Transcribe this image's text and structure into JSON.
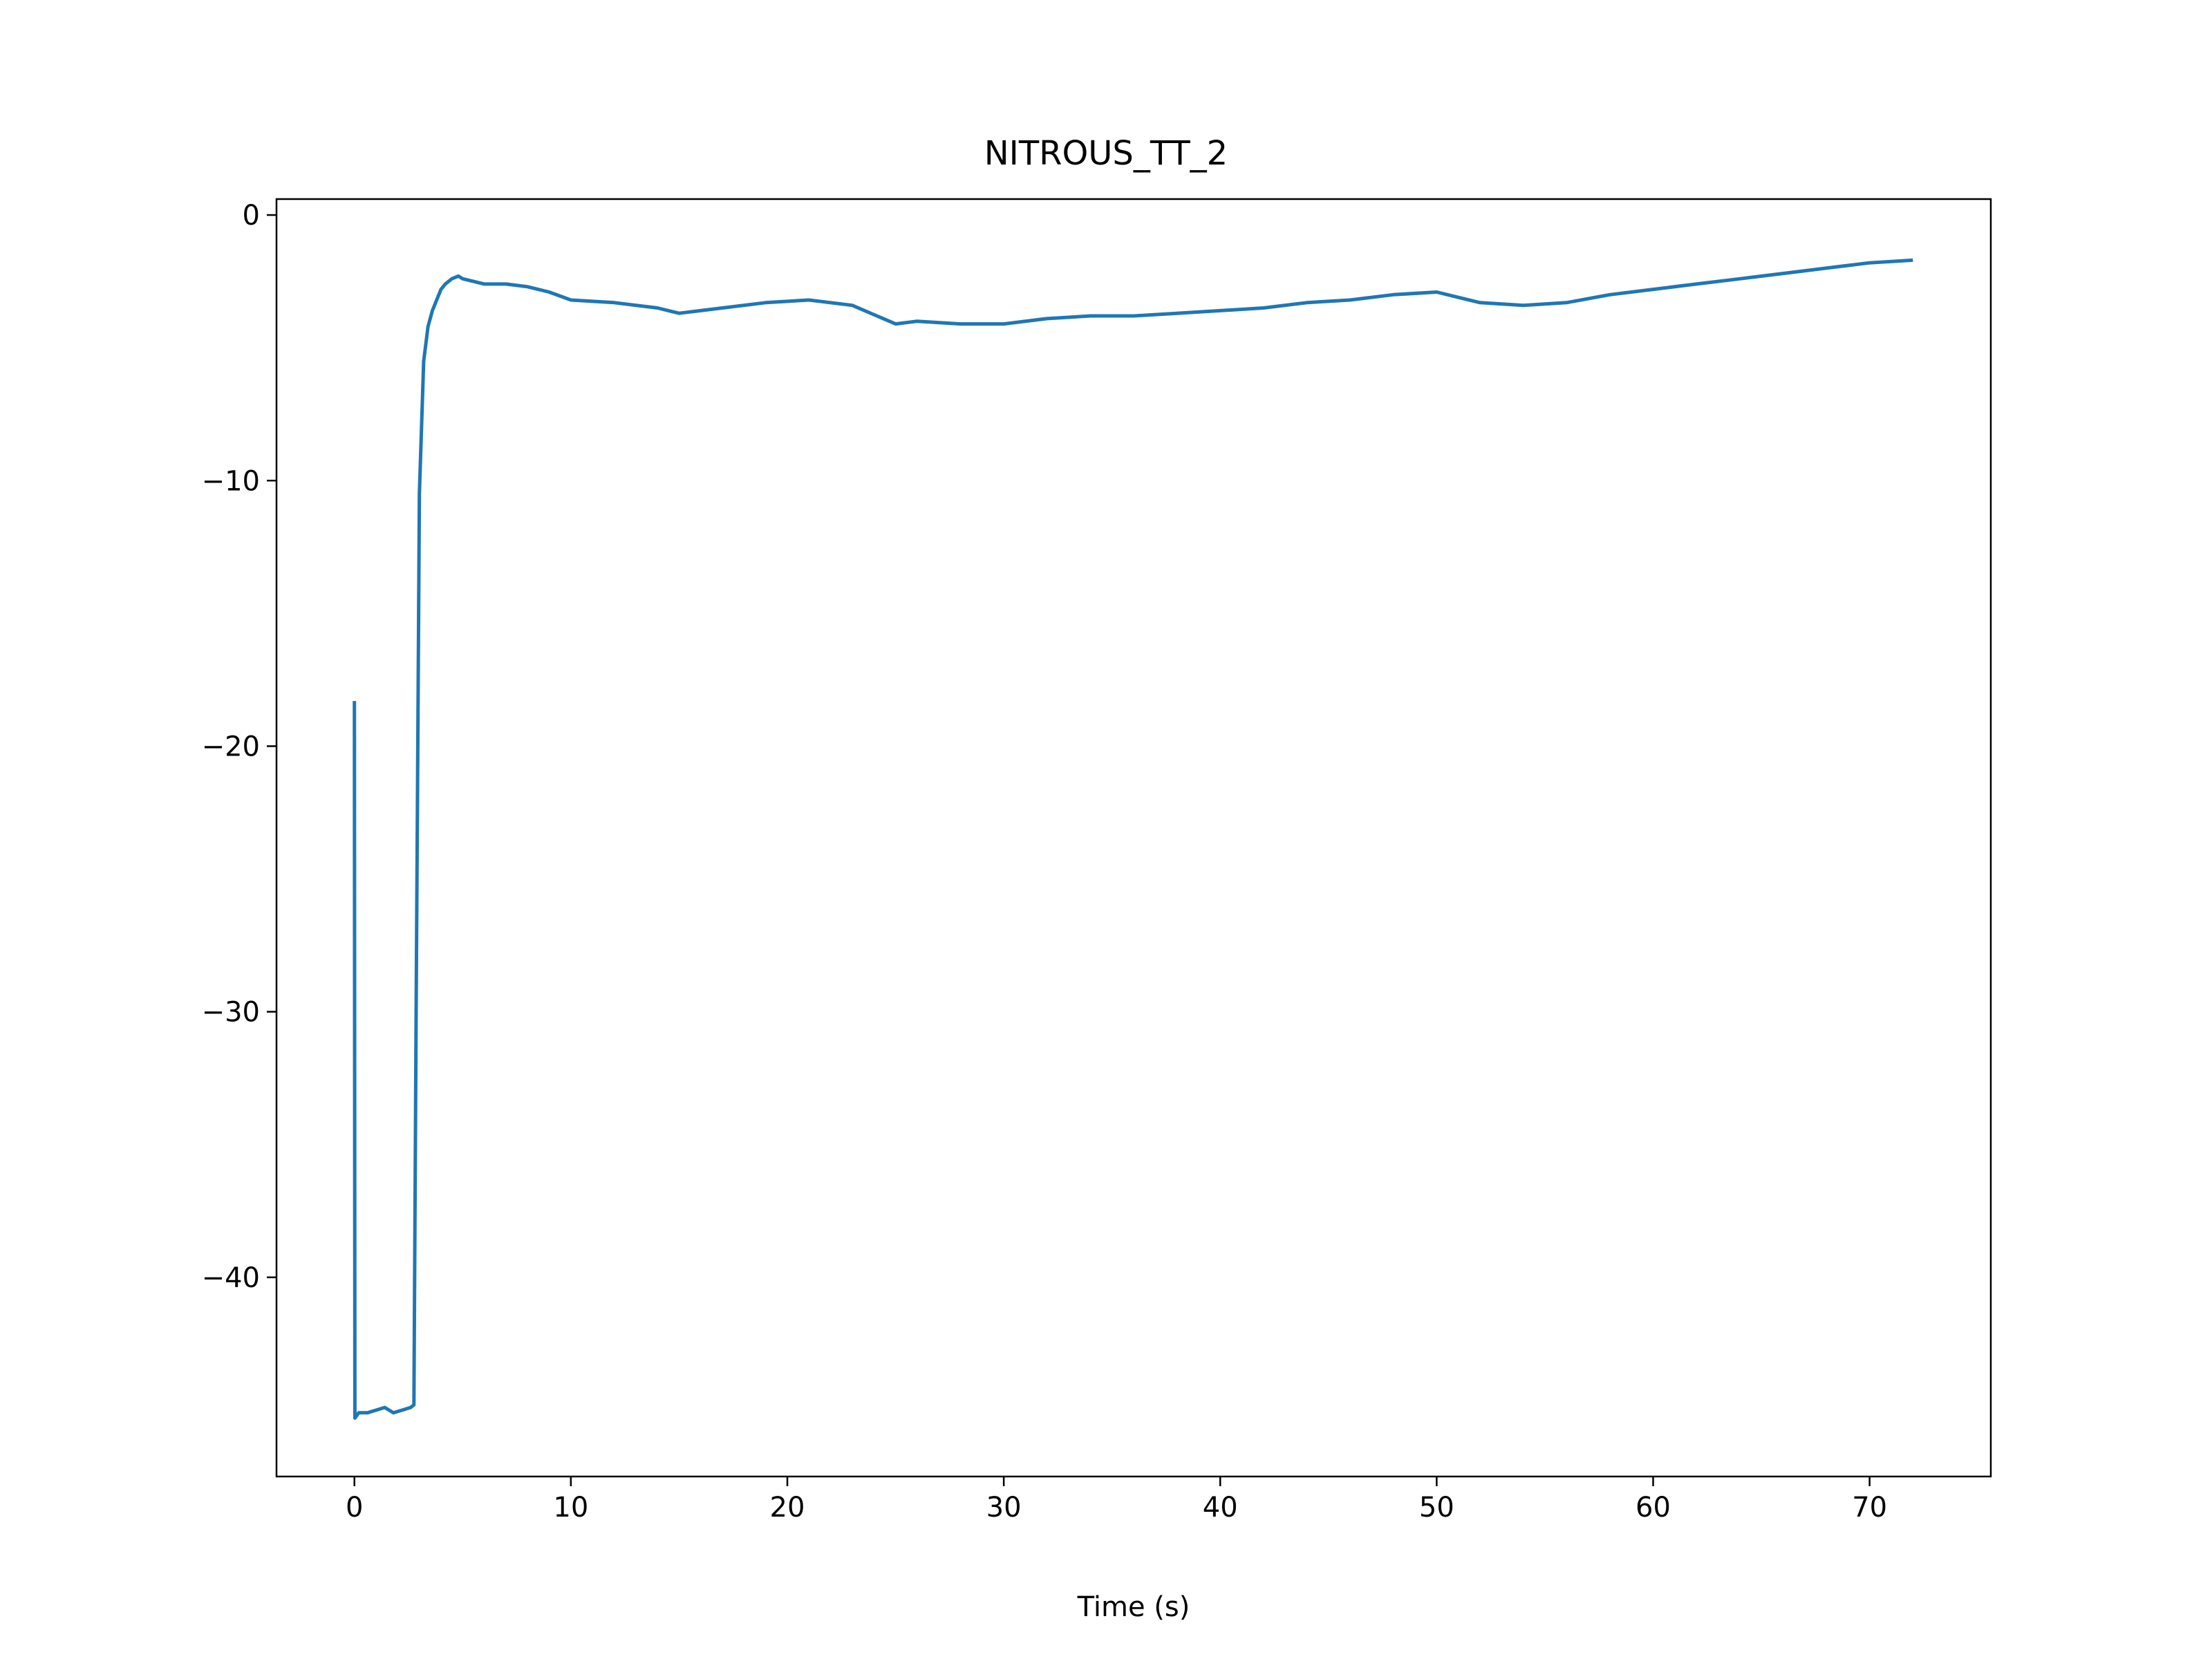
{
  "chart_data": {
    "type": "line",
    "title": "NITROUS_TT_2",
    "xlabel": "Time (s)",
    "ylabel": "",
    "xlim": [
      -3.6,
      75.6
    ],
    "ylim": [
      -47.5,
      0.6
    ],
    "xticks": [
      0,
      10,
      20,
      30,
      40,
      50,
      60,
      70
    ],
    "xtick_labels": [
      "0",
      "10",
      "20",
      "30",
      "40",
      "50",
      "60",
      "70"
    ],
    "yticks": [
      0,
      -10,
      -20,
      -30,
      -40
    ],
    "ytick_labels": [
      "0",
      "−10",
      "−20",
      "−30",
      "−40"
    ],
    "grid": false,
    "legend": "none",
    "series": [
      {
        "color": "#1f77b4",
        "x": [
          0,
          0.02,
          0.2,
          0.6,
          1.0,
          1.4,
          1.8,
          2.2,
          2.6,
          2.75,
          2.85,
          3.0,
          3.2,
          3.4,
          3.6,
          3.8,
          4.0,
          4.2,
          4.5,
          4.8,
          5.0,
          5.5,
          6,
          7,
          8,
          9,
          10,
          12,
          14,
          15,
          17,
          19,
          21,
          23,
          25,
          26,
          28,
          30,
          32,
          34,
          36,
          38,
          40,
          42,
          44,
          46,
          48,
          50,
          51,
          52,
          54,
          56,
          58,
          60,
          62,
          64,
          66,
          68,
          70,
          72
        ],
        "y": [
          -18.3,
          -45.3,
          -45.1,
          -45.1,
          -45.0,
          -44.9,
          -45.1,
          -45.0,
          -44.9,
          -44.8,
          -30.0,
          -10.5,
          -5.5,
          -4.2,
          -3.6,
          -3.2,
          -2.8,
          -2.6,
          -2.4,
          -2.3,
          -2.4,
          -2.5,
          -2.6,
          -2.6,
          -2.7,
          -2.9,
          -3.2,
          -3.3,
          -3.5,
          -3.7,
          -3.5,
          -3.3,
          -3.2,
          -3.4,
          -4.1,
          -4.0,
          -4.1,
          -4.1,
          -3.9,
          -3.8,
          -3.8,
          -3.7,
          -3.6,
          -3.5,
          -3.3,
          -3.2,
          -3.0,
          -2.9,
          -3.1,
          -3.3,
          -3.4,
          -3.3,
          -3.0,
          -2.8,
          -2.6,
          -2.4,
          -2.2,
          -2.0,
          -1.8,
          -1.7
        ]
      }
    ]
  }
}
